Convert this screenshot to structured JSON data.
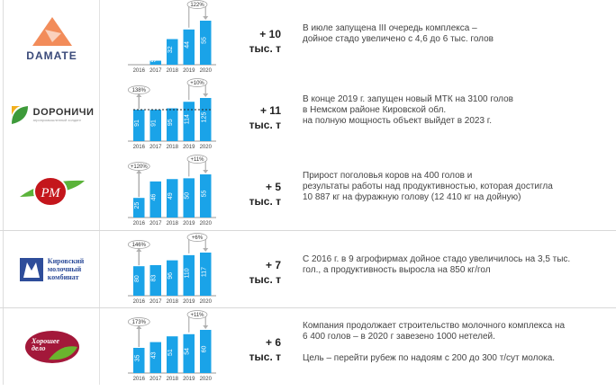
{
  "years": [
    "2016",
    "2017",
    "2018",
    "2019",
    "2020"
  ],
  "colors": {
    "bar": "#1aa3e8",
    "arrow": "#b0b0b0"
  },
  "rows": [
    {
      "logo": "DAMATE",
      "gain": "+ 10",
      "unit": "тыс. т",
      "values": [
        0,
        5,
        32,
        44,
        55
      ],
      "left_badge": "",
      "right_badge": "122%",
      "dashed": false,
      "text": "В июле запущена III очередь комплекса –\nдойное стадо увеличено с 4,6 до 6 тыс. голов"
    },
    {
      "logo": "DОРОНИЧИ",
      "logo_sub": "агропромышленный холдинг",
      "gain": "+ 11",
      "unit": "тыс. т",
      "values": [
        91,
        91,
        95,
        114,
        125
      ],
      "left_badge": "138%",
      "right_badge": "+10%",
      "dashed": true,
      "text": "В конце 2019 г. запущен новый МТК на 3100 голов\nв Немском районе Кировской обл.\nна полную мощность объект выйдет в 2023 г."
    },
    {
      "logo": "РМ",
      "gain": "+ 5",
      "unit": "тыс. т",
      "values": [
        25,
        46,
        49,
        50,
        55
      ],
      "left_badge": "+120%",
      "right_badge": "+11%",
      "dashed": false,
      "text": "Прирост поголовья коров на 400 голов и\nрезультаты работы над продуктивностью, которая достигла\n10 887 кг на фуражную голову (12 410 кг на дойную)"
    },
    {
      "logo": "Кировский\nмолочный\nкомбинат",
      "gain": "+ 7",
      "unit": "тыс. т",
      "values": [
        80,
        83,
        96,
        110,
        117
      ],
      "left_badge": "146%",
      "right_badge": "+6%",
      "dashed": false,
      "text": "С 2016 г. в 9 агрофирмах дойное стадо увеличилось на 3,5 тыс.\nгол., а продуктивность выросла на 850 кг/гол"
    },
    {
      "logo": "Хорошее\nдело",
      "gain": "+ 6",
      "unit": "тыс. т",
      "values": [
        35,
        43,
        51,
        54,
        60
      ],
      "left_badge": "173%",
      "right_badge": "+11%",
      "dashed": false,
      "text": "Компания продолжает строительство молочного комплекса на\n6 400 голов – в 2020 г завезено 1000 нетелей.\n\nЦель – перейти рубеж по надоям с 200 до 300 т/сут молока."
    }
  ]
}
